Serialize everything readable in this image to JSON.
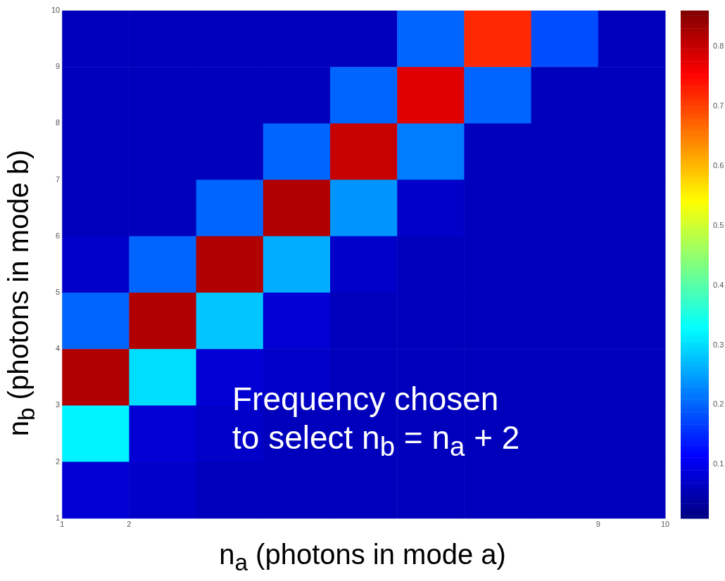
{
  "chart_data": {
    "type": "heatmap",
    "xlabel": "n$_{a}$ (photons in mode a)",
    "ylabel": "n$_{b}$ (photons in mode b)",
    "annotations": [
      "Frequency chosen\nto select n$_{b}$ = n$_{a}$ + 2"
    ],
    "xlim": [
      1,
      10
    ],
    "ylim": [
      1,
      10
    ],
    "xticks": [
      1,
      2,
      9,
      10
    ],
    "yticks": [
      1,
      2,
      3,
      4,
      5,
      6,
      7,
      8,
      9,
      10
    ],
    "clim": [
      0.01,
      0.86
    ],
    "cticks": [
      0.1,
      0.2,
      0.3,
      0.4,
      0.5,
      0.6,
      0.7,
      0.8
    ],
    "cells": [
      [
        0.06,
        0.06,
        0.06,
        0.06,
        0.06,
        0.2,
        0.72,
        0.18,
        0.06
      ],
      [
        0.06,
        0.06,
        0.06,
        0.06,
        0.2,
        0.78,
        0.2,
        0.06,
        0.06
      ],
      [
        0.06,
        0.06,
        0.06,
        0.2,
        0.8,
        0.22,
        0.06,
        0.06,
        0.06
      ],
      [
        0.06,
        0.06,
        0.2,
        0.82,
        0.24,
        0.07,
        0.06,
        0.06,
        0.06
      ],
      [
        0.07,
        0.2,
        0.82,
        0.26,
        0.07,
        0.06,
        0.06,
        0.06,
        0.06
      ],
      [
        0.2,
        0.82,
        0.28,
        0.08,
        0.06,
        0.06,
        0.06,
        0.06,
        0.06
      ],
      [
        0.82,
        0.3,
        0.08,
        0.07,
        0.06,
        0.06,
        0.06,
        0.06,
        0.06
      ],
      [
        0.32,
        0.08,
        0.07,
        0.06,
        0.06,
        0.06,
        0.06,
        0.06,
        0.06
      ],
      [
        0.08,
        0.07,
        0.06,
        0.06,
        0.06,
        0.06,
        0.06,
        0.06,
        0.06
      ]
    ]
  }
}
